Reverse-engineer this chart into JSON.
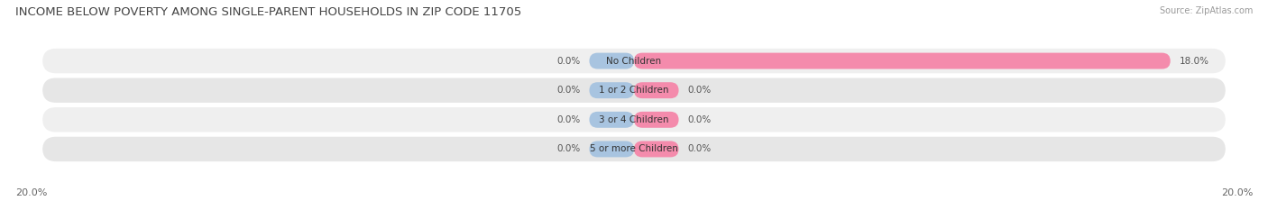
{
  "title": "INCOME BELOW POVERTY AMONG SINGLE-PARENT HOUSEHOLDS IN ZIP CODE 11705",
  "source": "Source: ZipAtlas.com",
  "categories": [
    "No Children",
    "1 or 2 Children",
    "3 or 4 Children",
    "5 or more Children"
  ],
  "single_father_values": [
    0.0,
    0.0,
    0.0,
    0.0
  ],
  "single_mother_values": [
    18.0,
    0.0,
    0.0,
    0.0
  ],
  "father_color": "#a8c4e0",
  "mother_color": "#f48bac",
  "row_bg_color_odd": "#efefef",
  "row_bg_color_even": "#e6e6e6",
  "xlim_left": -20,
  "xlim_right": 20,
  "axis_label_left": "20.0%",
  "axis_label_right": "20.0%",
  "title_fontsize": 9.5,
  "source_fontsize": 7,
  "value_fontsize": 7.5,
  "category_fontsize": 7.5,
  "axis_tick_fontsize": 8,
  "background_color": "#ffffff",
  "father_stub": 1.5,
  "mother_stub": 1.5
}
